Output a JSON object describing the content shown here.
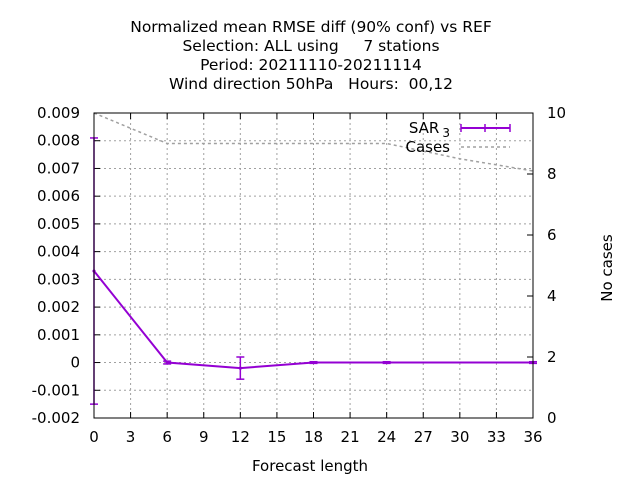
{
  "chart_data": {
    "type": "line",
    "title_lines": [
      "Normalized mean RMSE diff (90% conf) vs REF",
      "Selection: ALL using     7 stations",
      "Period: 20211110-20211114",
      "Wind direction 50hPa   Hours:  00,12"
    ],
    "xlabel": "Forecast length",
    "ylabel": "",
    "y2label": "No cases",
    "xlim": [
      0,
      36
    ],
    "ylim": [
      -0.002,
      0.009
    ],
    "y2lim": [
      0,
      10
    ],
    "xticks": [
      0,
      3,
      6,
      9,
      12,
      15,
      18,
      21,
      24,
      27,
      30,
      33,
      36
    ],
    "yticks": [
      -0.002,
      -0.001,
      0,
      0.001,
      0.002,
      0.003,
      0.004,
      0.005,
      0.006,
      0.007,
      0.008,
      0.009
    ],
    "ytick_labels": [
      "-0.002",
      "-0.001",
      "0",
      "0.001",
      "0.002",
      "0.003",
      "0.004",
      "0.005",
      "0.006",
      "0.007",
      "0.008",
      "0.009"
    ],
    "y2ticks": [
      0,
      2,
      4,
      6,
      8,
      10
    ],
    "grid": true,
    "legend_position": "top-right",
    "series": [
      {
        "name": "SAR",
        "name_subscript": "3",
        "color": "#9400d3",
        "axis": "left",
        "x": [
          0,
          6,
          12,
          18,
          24,
          36
        ],
        "y": [
          0.0033,
          0.0,
          -0.0002,
          0.0,
          0.0,
          0.0
        ],
        "err_low": [
          -0.0015,
          -5e-05,
          -0.0006,
          -3e-05,
          -3e-05,
          -3e-05
        ],
        "err_high": [
          0.0081,
          5e-05,
          0.0002,
          3e-05,
          3e-05,
          3e-05
        ]
      },
      {
        "name": "Cases",
        "color": "#a0a0a0",
        "axis": "right",
        "x": [
          0,
          6,
          12,
          18,
          24,
          30,
          36
        ],
        "y": [
          10,
          9,
          9,
          9,
          9,
          8.5,
          8.1
        ]
      }
    ]
  }
}
